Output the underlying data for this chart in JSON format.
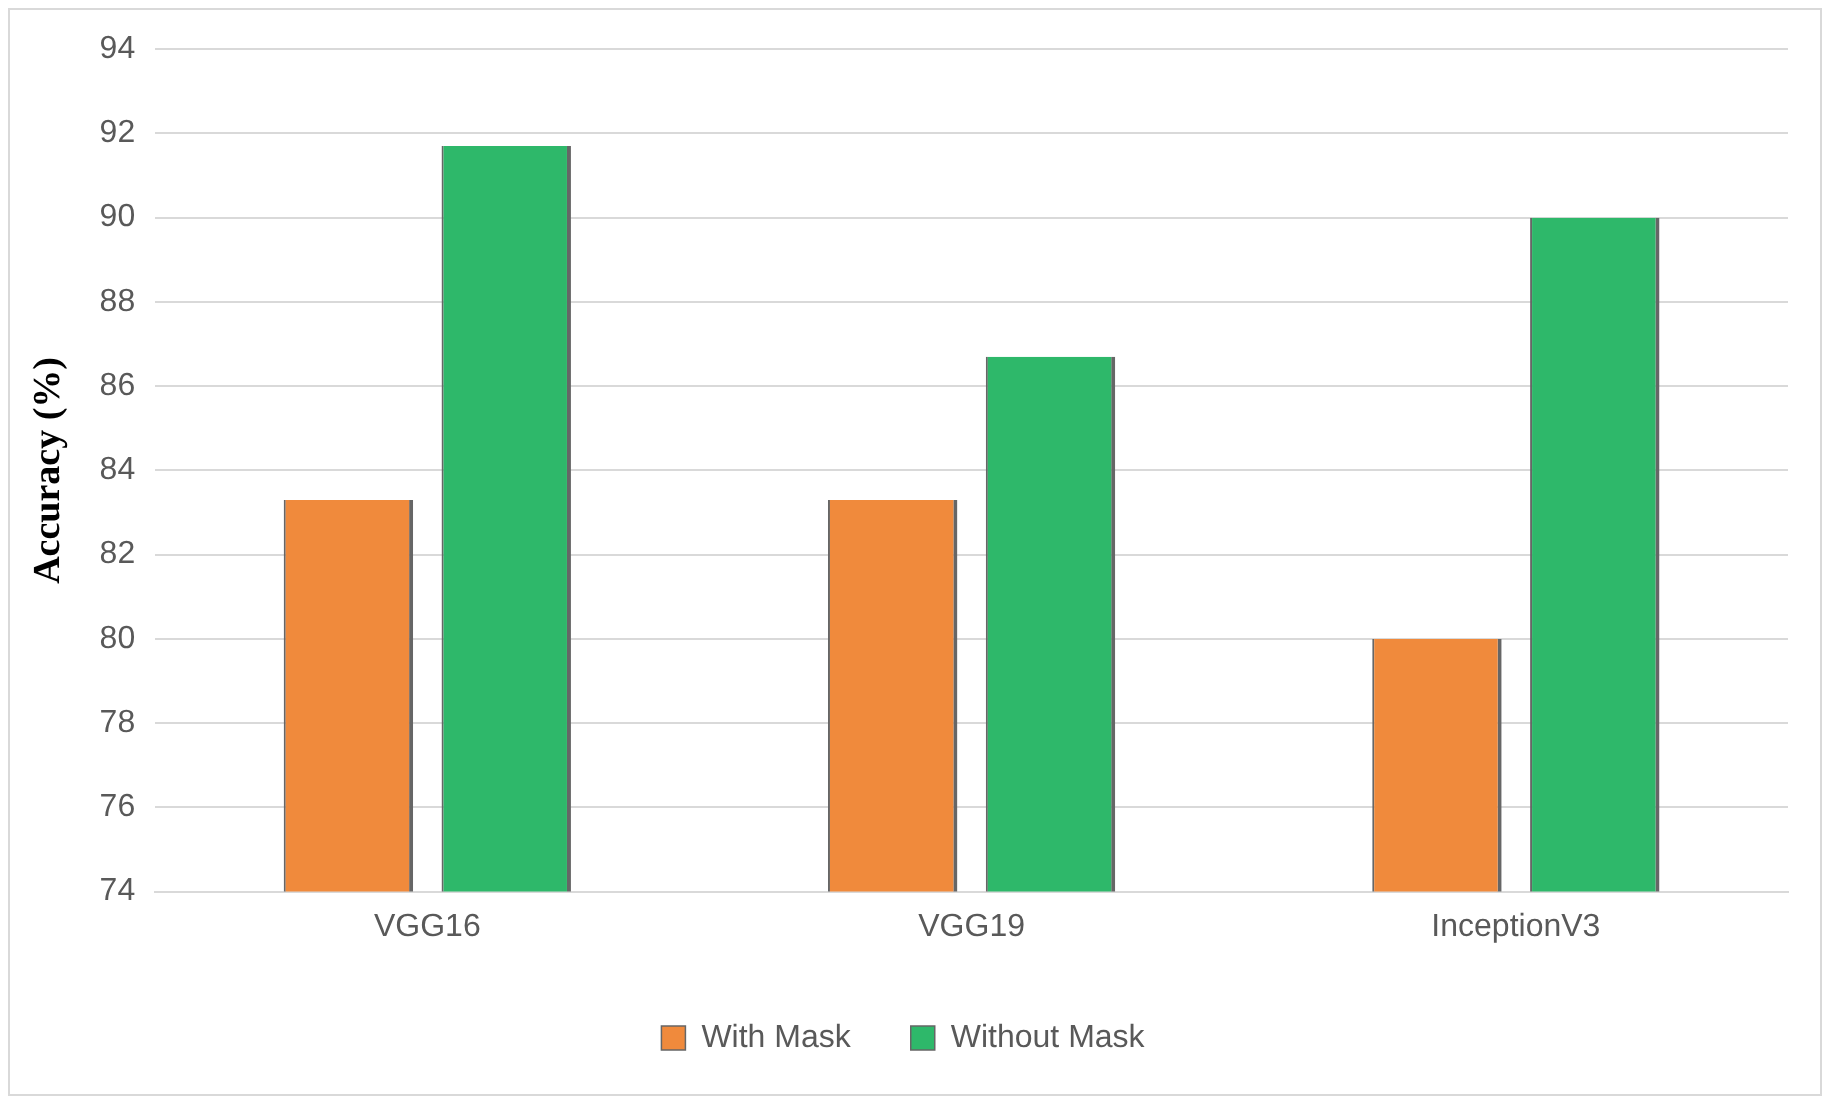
{
  "chart_data": {
    "type": "bar",
    "ylabel": "Accuracy (%)",
    "categories": [
      "VGG16",
      "VGG19",
      "InceptionV3"
    ],
    "series": [
      {
        "name": "With Mask",
        "color": "#f08a3c",
        "values": [
          83.3,
          83.3,
          80.0
        ]
      },
      {
        "name": "Without Mask",
        "color": "#2eb86a",
        "values": [
          91.7,
          86.7,
          90.0
        ]
      }
    ],
    "ylim": [
      74,
      94
    ],
    "yticks": [
      74,
      76,
      78,
      80,
      82,
      84,
      86,
      88,
      90,
      92,
      94
    ],
    "grid": "y",
    "legend": "bottom"
  }
}
